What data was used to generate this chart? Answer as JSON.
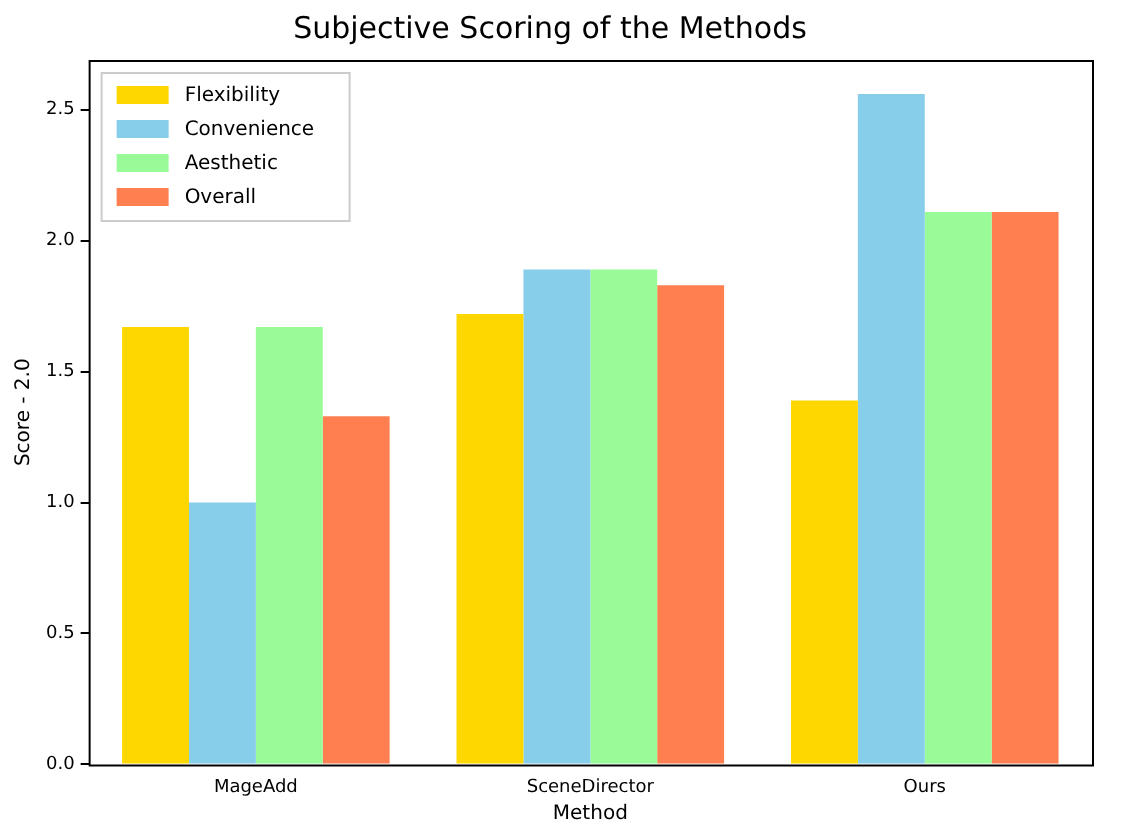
{
  "chart_data": {
    "type": "bar",
    "title": "Subjective Scoring of the Methods",
    "xlabel": "Method",
    "ylabel": "Score - 2.0",
    "categories": [
      "MageAdd",
      "SceneDirector",
      "Ours"
    ],
    "series": [
      {
        "name": "Flexibility",
        "color": "#ffd700",
        "values": [
          1.67,
          1.72,
          1.39
        ]
      },
      {
        "name": "Convenience",
        "color": "#87ceeb",
        "values": [
          1.0,
          1.89,
          2.56
        ]
      },
      {
        "name": "Aesthetic",
        "color": "#98fb98",
        "values": [
          1.67,
          1.89,
          2.11
        ]
      },
      {
        "name": "Overall",
        "color": "#ff7f50",
        "values": [
          1.33,
          1.83,
          2.11
        ]
      }
    ],
    "ylim": [
      0,
      2.69
    ],
    "yticks": [
      {
        "value": 0,
        "label": "0.0"
      },
      {
        "value": 0.5,
        "label": "0.5"
      },
      {
        "value": 1,
        "label": "1.0"
      },
      {
        "value": 1.5,
        "label": "1.5"
      },
      {
        "value": 2,
        "label": "2.0"
      },
      {
        "value": 2.5,
        "label": "2.5"
      }
    ],
    "grid": false,
    "legend": "top left"
  }
}
